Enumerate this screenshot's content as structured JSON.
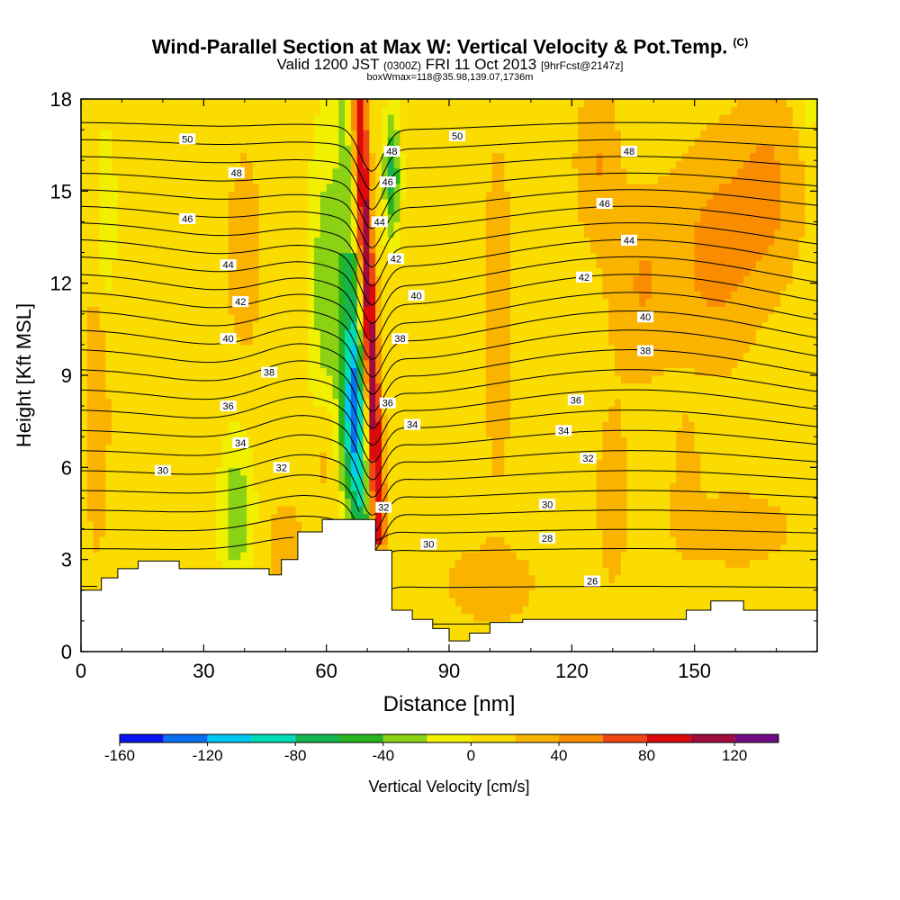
{
  "title": {
    "main": "Wind-Parallel Section at Max W: Vertical Velocity & Pot.Temp.",
    "corner": "(C)",
    "valid_prefix": "Valid 1200 JST",
    "valid_utc": "(0300Z)",
    "valid_date": "FRI 11 Oct 2013",
    "forecast": "[9hrFcst@2147z]",
    "box": "boxWmax=118@35.98,139.07,1736m"
  },
  "chart_data": {
    "type": "heatmap",
    "xlabel": "Distance [nm]",
    "ylabel": "Height [Kft MSL]",
    "xlim": [
      0,
      180
    ],
    "ylim": [
      0,
      18
    ],
    "xticks": [
      0,
      30,
      60,
      90,
      120,
      150
    ],
    "yticks": [
      0,
      3,
      6,
      9,
      12,
      15,
      18
    ],
    "colorbar": {
      "label": "Vertical Velocity [cm/s]",
      "tick_labels": [
        -160,
        -120,
        -80,
        -40,
        0,
        40,
        80,
        120
      ],
      "levels": [
        -160,
        -140,
        -120,
        -100,
        -80,
        -60,
        -40,
        -20,
        0,
        20,
        40,
        60,
        80,
        100,
        120,
        140
      ],
      "colors": [
        "#0a14f0",
        "#0a6ef0",
        "#00c8f0",
        "#00dcb4",
        "#14b450",
        "#28b41e",
        "#8cd214",
        "#f0f000",
        "#fadc00",
        "#fab400",
        "#fa8c00",
        "#f04614",
        "#dc0a0a",
        "#a00a3c",
        "#6e0a82"
      ]
    },
    "terrain_profile": [
      [
        0,
        2.0
      ],
      [
        5,
        2.0
      ],
      [
        5,
        2.4
      ],
      [
        9,
        2.4
      ],
      [
        9,
        2.7
      ],
      [
        14,
        2.7
      ],
      [
        14,
        2.95
      ],
      [
        24,
        2.95
      ],
      [
        24,
        2.7
      ],
      [
        46,
        2.7
      ],
      [
        46,
        2.5
      ],
      [
        49,
        2.5
      ],
      [
        49,
        3.0
      ],
      [
        53,
        3.0
      ],
      [
        53,
        3.9
      ],
      [
        59,
        3.9
      ],
      [
        59,
        4.3
      ],
      [
        72,
        4.3
      ],
      [
        72,
        3.3
      ],
      [
        76,
        3.3
      ],
      [
        76,
        1.35
      ],
      [
        81,
        1.35
      ],
      [
        81,
        1.05
      ],
      [
        86,
        1.05
      ],
      [
        86,
        0.75
      ],
      [
        90,
        0.75
      ],
      [
        90,
        0.35
      ],
      [
        95,
        0.35
      ],
      [
        95,
        0.6
      ],
      [
        100,
        0.6
      ],
      [
        100,
        0.95
      ],
      [
        108,
        0.95
      ],
      [
        108,
        1.05
      ],
      [
        148,
        1.05
      ],
      [
        148,
        1.35
      ],
      [
        154,
        1.35
      ],
      [
        154,
        1.65
      ],
      [
        162,
        1.65
      ],
      [
        162,
        1.35
      ],
      [
        180,
        1.35
      ]
    ],
    "velocity_features": [
      {
        "sign": "up",
        "x": 4,
        "z": 8,
        "rx": 3,
        "rz": 5,
        "w": 25
      },
      {
        "sign": "up",
        "x": 40,
        "z": 13,
        "rx": 4,
        "rz": 3,
        "w": 30
      },
      {
        "sign": "up",
        "x": 60,
        "z": 6.5,
        "rx": 3,
        "rz": 2,
        "w": 25
      },
      {
        "sign": "up",
        "x": 50,
        "z": 3.4,
        "rx": 4,
        "rz": 1.5,
        "w": 25
      },
      {
        "sign": "up",
        "x": 102,
        "z": 11,
        "rx": 4,
        "rz": 6,
        "w": 22
      },
      {
        "sign": "up",
        "x": 126,
        "z": 16,
        "rx": 5,
        "rz": 2.5,
        "w": 30
      },
      {
        "sign": "up",
        "x": 137,
        "z": 12,
        "rx": 8,
        "rz": 3,
        "w": 30
      },
      {
        "sign": "up",
        "x": 155,
        "z": 13,
        "rx": 10,
        "rz": 3.5,
        "w": 38
      },
      {
        "sign": "up",
        "x": 168,
        "z": 15,
        "rx": 8,
        "rz": 3,
        "w": 35
      },
      {
        "sign": "up",
        "x": 160,
        "z": 4,
        "rx": 14,
        "rz": 1.3,
        "w": 22
      },
      {
        "sign": "up",
        "x": 100,
        "z": 2.2,
        "rx": 12,
        "rz": 1.3,
        "w": 22
      },
      {
        "sign": "up",
        "x": 130,
        "z": 5,
        "rx": 4,
        "rz": 3,
        "w": 22
      },
      {
        "sign": "up",
        "x": 148,
        "z": 5.5,
        "rx": 3,
        "rz": 2,
        "w": 25
      },
      {
        "sign": "down",
        "x": 6,
        "z": 14,
        "rx": 2.5,
        "rz": 3,
        "w": -30
      },
      {
        "sign": "down",
        "x": 38,
        "z": 4.5,
        "rx": 4,
        "rz": 2.5,
        "w": -45
      },
      {
        "sign": "down",
        "x": 60,
        "z": 12,
        "rx": 4,
        "rz": 5,
        "w": -45
      },
      {
        "sign": "down",
        "x": 66,
        "z": 7.5,
        "rx": 3,
        "rz": 3,
        "w": -85
      },
      {
        "sign": "down",
        "x": 76,
        "z": 15.5,
        "rx": 2,
        "rz": 2,
        "w": -75
      },
      {
        "sign": "down",
        "x": 178,
        "z": 17.8,
        "rx": 2,
        "rz": 1,
        "w": -30
      }
    ],
    "updraft_band": {
      "x_bottom": 73,
      "z_bottom": 3.5,
      "x_top": 68,
      "z_top": 18,
      "half_width": 1.8,
      "w_max": 110
    },
    "isentrope_values": [
      24,
      26,
      28,
      30,
      31,
      32,
      33,
      34,
      35,
      36,
      37,
      38,
      39,
      40,
      41,
      42,
      43,
      44,
      45,
      46,
      47,
      48,
      49,
      50,
      51,
      52,
      53
    ],
    "isentrope_labels": [
      {
        "value": "50",
        "x": 26,
        "z": 16.7
      },
      {
        "value": "48",
        "x": 38,
        "z": 15.6
      },
      {
        "value": "46",
        "x": 26,
        "z": 14.1
      },
      {
        "value": "44",
        "x": 36,
        "z": 12.6
      },
      {
        "value": "42",
        "x": 39,
        "z": 11.4
      },
      {
        "value": "40",
        "x": 36,
        "z": 10.2
      },
      {
        "value": "38",
        "x": 46,
        "z": 9.1
      },
      {
        "value": "36",
        "x": 36,
        "z": 8.0
      },
      {
        "value": "34",
        "x": 39,
        "z": 6.8
      },
      {
        "value": "32",
        "x": 49,
        "z": 6.0
      },
      {
        "value": "30",
        "x": 20,
        "z": 5.9
      },
      {
        "value": "48",
        "x": 76,
        "z": 16.3
      },
      {
        "value": "46",
        "x": 75,
        "z": 15.3
      },
      {
        "value": "44",
        "x": 73,
        "z": 14.0
      },
      {
        "value": "42",
        "x": 77,
        "z": 12.8
      },
      {
        "value": "40",
        "x": 82,
        "z": 11.6
      },
      {
        "value": "38",
        "x": 78,
        "z": 10.2
      },
      {
        "value": "36",
        "x": 75,
        "z": 8.1
      },
      {
        "value": "34",
        "x": 81,
        "z": 7.4
      },
      {
        "value": "32",
        "x": 74,
        "z": 4.7
      },
      {
        "value": "30",
        "x": 85,
        "z": 3.5
      },
      {
        "value": "50",
        "x": 92,
        "z": 16.8
      },
      {
        "value": "48",
        "x": 134,
        "z": 16.3
      },
      {
        "value": "46",
        "x": 128,
        "z": 14.6
      },
      {
        "value": "44",
        "x": 134,
        "z": 13.4
      },
      {
        "value": "42",
        "x": 123,
        "z": 12.2
      },
      {
        "value": "40",
        "x": 138,
        "z": 10.9
      },
      {
        "value": "38",
        "x": 138,
        "z": 9.8
      },
      {
        "value": "36",
        "x": 121,
        "z": 8.2
      },
      {
        "value": "34",
        "x": 118,
        "z": 7.2
      },
      {
        "value": "32",
        "x": 124,
        "z": 6.3
      },
      {
        "value": "30",
        "x": 114,
        "z": 4.8
      },
      {
        "value": "28",
        "x": 114,
        "z": 3.7
      },
      {
        "value": "26",
        "x": 125,
        "z": 2.3
      }
    ]
  }
}
